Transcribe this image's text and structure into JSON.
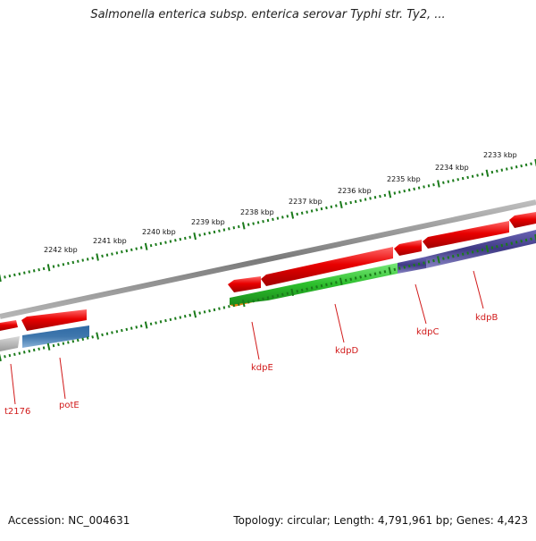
{
  "title": "Salmonella enterica subsp. enterica serovar Typhi str. Ty2, ...",
  "footer": {
    "accession": "Accession: NC_004631",
    "summary": "Topology: circular; Length: 4,791,961 bp; Genes: 4,423"
  },
  "ruler_labels": [
    "2242 kbp",
    "2241 kbp",
    "2240 kbp",
    "2239 kbp",
    "2238 kbp",
    "2237 kbp",
    "2236 kbp",
    "2235 kbp",
    "2234 kbp",
    "2233 kbp"
  ],
  "genes": [
    {
      "name": "t2176",
      "color": "#b0b0b0"
    },
    {
      "name": "potE",
      "color": "#3f77ad"
    },
    {
      "name": "kdpE",
      "color": "#f08a00"
    },
    {
      "name": "kdpD",
      "color": "#2dbf2d"
    },
    {
      "name": "kdpC",
      "color": "#3f3a85"
    },
    {
      "name": "kdpB",
      "color": "#3f3a85"
    }
  ],
  "colors": {
    "forward_strand": "#e30000",
    "label": "#d11a1a",
    "ruler": "#1a7a1a",
    "backbone": "#8c8c8c"
  }
}
